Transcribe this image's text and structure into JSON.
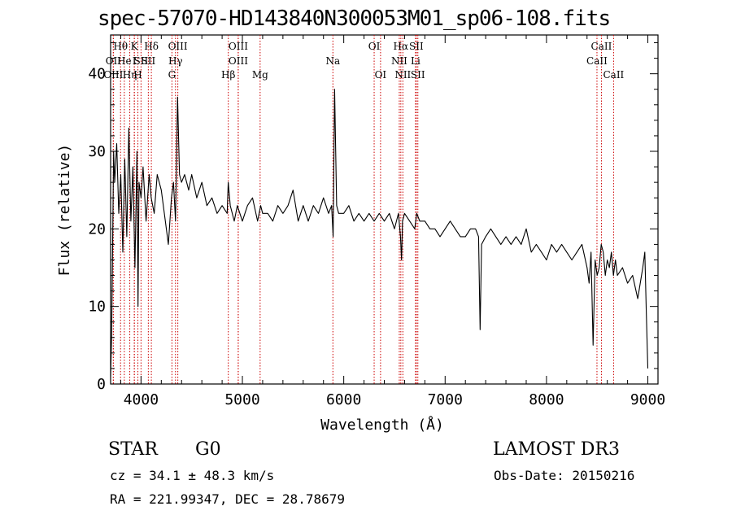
{
  "chart_data": {
    "type": "line",
    "title": "spec-57070-HD143840N300053M01_sp06-108.fits",
    "xlabel": "Wavelength (Å)",
    "ylabel": "Flux (relative)",
    "xlim": [
      3700,
      9100
    ],
    "ylim": [
      0,
      45
    ],
    "x_ticks": [
      4000,
      5000,
      6000,
      7000,
      8000,
      9000
    ],
    "x_tick_labels": [
      "4000",
      "5000",
      "6000",
      "7000",
      "8000",
      "9000"
    ],
    "y_ticks": [
      0,
      10,
      20,
      30,
      40
    ],
    "y_tick_labels": [
      "0",
      "10",
      "20",
      "30",
      "40"
    ],
    "series": [
      {
        "name": "flux",
        "x": [
          3700,
          3710,
          3720,
          3730,
          3740,
          3760,
          3780,
          3800,
          3820,
          3840,
          3860,
          3880,
          3900,
          3920,
          3940,
          3960,
          3970,
          3980,
          4000,
          4020,
          4050,
          4080,
          4100,
          4130,
          4160,
          4200,
          4240,
          4270,
          4300,
          4320,
          4340,
          4360,
          4380,
          4400,
          4430,
          4470,
          4500,
          4550,
          4600,
          4650,
          4700,
          4750,
          4800,
          4850,
          4860,
          4880,
          4920,
          4950,
          5000,
          5050,
          5100,
          5150,
          5180,
          5200,
          5250,
          5300,
          5350,
          5400,
          5450,
          5500,
          5550,
          5600,
          5650,
          5700,
          5750,
          5800,
          5850,
          5880,
          5895,
          5910,
          5930,
          5950,
          6000,
          6050,
          6100,
          6150,
          6200,
          6250,
          6300,
          6350,
          6400,
          6450,
          6500,
          6540,
          6560,
          6570,
          6580,
          6600,
          6650,
          6700,
          6720,
          6750,
          6800,
          6850,
          6900,
          6950,
          7000,
          7050,
          7100,
          7150,
          7200,
          7250,
          7300,
          7330,
          7345,
          7360,
          7400,
          7450,
          7500,
          7550,
          7600,
          7650,
          7700,
          7750,
          7800,
          7850,
          7900,
          7950,
          8000,
          8050,
          8100,
          8150,
          8200,
          8250,
          8300,
          8350,
          8400,
          8420,
          8440,
          8460,
          8480,
          8500,
          8520,
          8540,
          8560,
          8580,
          8600,
          8620,
          8640,
          8660,
          8680,
          8700,
          8750,
          8800,
          8850,
          8900,
          8950,
          8970,
          8985,
          9000
        ],
        "values": [
          1,
          6,
          18,
          30,
          26,
          31,
          22,
          27,
          17,
          29,
          19,
          33,
          21,
          28,
          15,
          30,
          10,
          26,
          24,
          28,
          21,
          27,
          24,
          22,
          27,
          25,
          21,
          18,
          24,
          26,
          21,
          37,
          27,
          26,
          27,
          25,
          27,
          24,
          26,
          23,
          24,
          22,
          23,
          22,
          26,
          23,
          21,
          23,
          21,
          23,
          24,
          21,
          23,
          22,
          22,
          21,
          23,
          22,
          23,
          25,
          21,
          23,
          21,
          23,
          22,
          24,
          22,
          23,
          19,
          38,
          23,
          22,
          22,
          23,
          21,
          22,
          21,
          22,
          21,
          22,
          21,
          22,
          20,
          22,
          19,
          16,
          21,
          22,
          21,
          20,
          22,
          21,
          21,
          20,
          20,
          19,
          20,
          21,
          20,
          19,
          19,
          20,
          20,
          19,
          7,
          18,
          19,
          20,
          19,
          18,
          19,
          18,
          19,
          18,
          20,
          17,
          18,
          17,
          16,
          18,
          17,
          18,
          17,
          16,
          17,
          18,
          15,
          13,
          17,
          5,
          16,
          14,
          15,
          18,
          17,
          14,
          16,
          15,
          17,
          14,
          16,
          14,
          15,
          13,
          14,
          11,
          15,
          17,
          9,
          2
        ],
        "color": "#000000"
      }
    ],
    "line_markers": [
      {
        "name": "Hθ",
        "x": 3798,
        "row": 1
      },
      {
        "name": "OII",
        "x": 3727,
        "row": 2
      },
      {
        "name": "OIII",
        "x": 3727,
        "row": 3
      },
      {
        "name": "He",
        "x": 3835,
        "row": 2
      },
      {
        "name": "Hη",
        "x": 3889,
        "row": 3
      },
      {
        "name": "K",
        "x": 3934,
        "row": 1
      },
      {
        "name": "I",
        "x": 3934,
        "row": 2
      },
      {
        "name": "SII",
        "x": 4000,
        "row": 2
      },
      {
        "name": "H",
        "x": 3969,
        "row": 3
      },
      {
        "name": "Hδ",
        "x": 4102,
        "row": 1
      },
      {
        "name": "SII",
        "x": 4072,
        "row": 2
      },
      {
        "name": "OIII",
        "x": 4363,
        "row": 1
      },
      {
        "name": "Hγ",
        "x": 4340,
        "row": 2
      },
      {
        "name": "G",
        "x": 4305,
        "row": 3
      },
      {
        "name": "OIII",
        "x": 4959,
        "row": 1
      },
      {
        "name": "OIII",
        "x": 4959,
        "row": 2
      },
      {
        "name": "Hβ",
        "x": 4861,
        "row": 3
      },
      {
        "name": "Mg",
        "x": 5175,
        "row": 3
      },
      {
        "name": "Na",
        "x": 5893,
        "row": 2
      },
      {
        "name": "OI",
        "x": 6300,
        "row": 1
      },
      {
        "name": "OI",
        "x": 6363,
        "row": 3
      },
      {
        "name": "Hα",
        "x": 6563,
        "row": 1
      },
      {
        "name": "SII",
        "x": 6716,
        "row": 1
      },
      {
        "name": "NII",
        "x": 6548,
        "row": 2
      },
      {
        "name": "Li",
        "x": 6708,
        "row": 2
      },
      {
        "name": "NII",
        "x": 6583,
        "row": 3
      },
      {
        "name": "SII",
        "x": 6731,
        "row": 3
      },
      {
        "name": "CaII",
        "x": 8542,
        "row": 1
      },
      {
        "name": "CaII",
        "x": 8498,
        "row": 2
      },
      {
        "name": "CaII",
        "x": 8662,
        "row": 3
      }
    ],
    "marker_color": "#cc0000"
  },
  "info": {
    "class_label": "STAR",
    "subclass_label": "G0",
    "survey": "LAMOST DR3",
    "cz": "cz = 34.1 ± 48.3 km/s",
    "obs_date": "Obs-Date: 20150216",
    "coords": "RA = 221.99347, DEC =  28.78679"
  }
}
